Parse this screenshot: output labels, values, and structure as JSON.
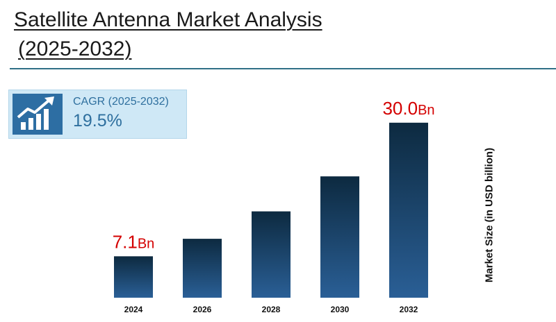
{
  "title": {
    "line1": "Satellite Antenna Market Analysis",
    "line2": "(2025-2032)"
  },
  "cagr": {
    "label": "CAGR (2025-2032)",
    "value": "19.5%",
    "icon": "growth-chart-icon"
  },
  "colors": {
    "bar_top": "#0d2a40",
    "bar_bottom": "#2a5f96",
    "callout": "#d40000",
    "rule": "#2f6f86",
    "cagr_bg": "#cfe8f6",
    "cagr_text": "#2e6f9e"
  },
  "chart_data": {
    "type": "bar",
    "categories": [
      "2024",
      "2026",
      "2028",
      "2030",
      "2032"
    ],
    "values": [
      7.1,
      10.1,
      14.8,
      20.8,
      30.0
    ],
    "ylabel": "Market Size (in USD billion)",
    "ylim": [
      0,
      32
    ],
    "grid": false,
    "callouts": [
      {
        "index": 0,
        "number": "7.1",
        "unit": "Bn"
      },
      {
        "index": 4,
        "number": "30.0",
        "unit": "Bn"
      }
    ]
  }
}
